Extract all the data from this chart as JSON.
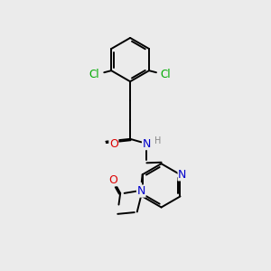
{
  "bg_color": "#ebebeb",
  "bond_color": "#000000",
  "bond_width": 1.4,
  "atom_colors": {
    "N": "#0000cc",
    "O": "#dd0000",
    "Cl": "#00aa00",
    "H": "#888888"
  },
  "font_size": 8.0,
  "xlim": [
    0,
    10
  ],
  "ylim": [
    0,
    10
  ]
}
